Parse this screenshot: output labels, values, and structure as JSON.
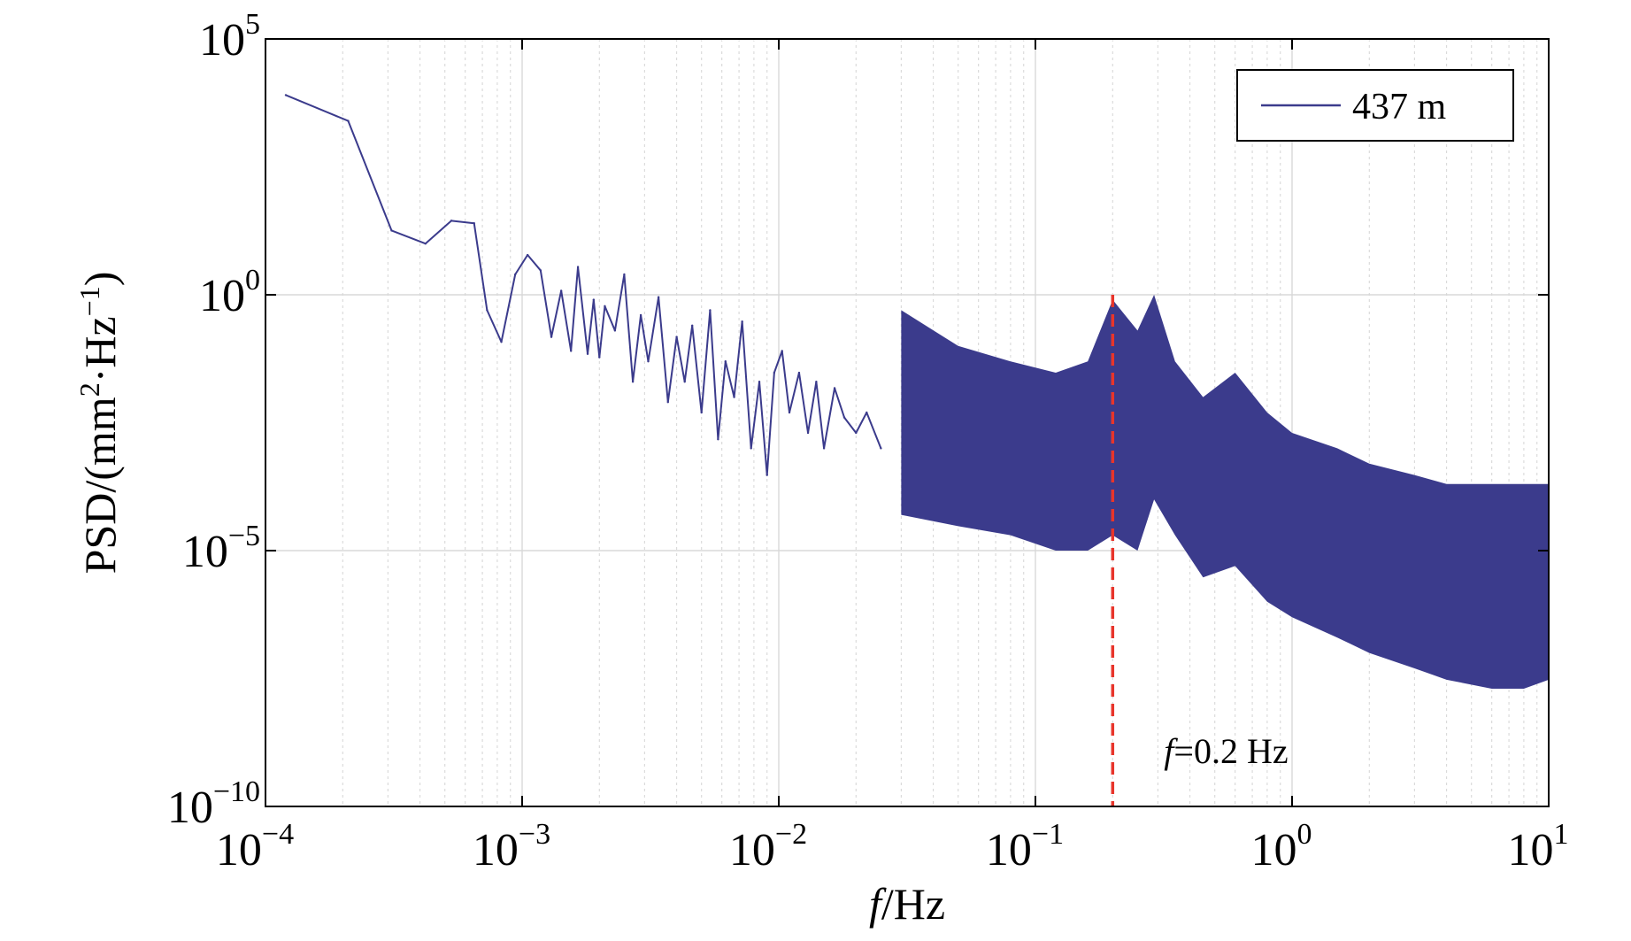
{
  "chart_data": {
    "type": "line",
    "title": "",
    "scale": {
      "x": "log",
      "y": "log"
    },
    "xlabel": {
      "italic": "f",
      "rest": "/Hz"
    },
    "ylabel": {
      "prefix": "PSD/(mm",
      "sup1": "2",
      "mid": "·Hz",
      "sup2": "−1",
      "suffix": ")"
    },
    "xlim": [
      0.0001,
      10
    ],
    "ylim": [
      1e-10,
      100000
    ],
    "x_ticks": [
      {
        "value": 0.0001,
        "base": "10",
        "exp": "−4"
      },
      {
        "value": 0.001,
        "base": "10",
        "exp": "−3"
      },
      {
        "value": 0.01,
        "base": "10",
        "exp": "−2"
      },
      {
        "value": 0.1,
        "base": "10",
        "exp": "−1"
      },
      {
        "value": 1,
        "base": "10",
        "exp": "0"
      },
      {
        "value": 10,
        "base": "10",
        "exp": "1"
      }
    ],
    "y_ticks": [
      {
        "value": 1e-10,
        "base": "10",
        "exp": "−10"
      },
      {
        "value": 1e-05,
        "base": "10",
        "exp": "−5"
      },
      {
        "value": 1,
        "base": "10",
        "exp": "0"
      },
      {
        "value": 100000,
        "base": "10",
        "exp": "5"
      }
    ],
    "grid": true,
    "legend": {
      "location": "top-right",
      "entries": [
        "437 m"
      ]
    },
    "colors": {
      "series": "#3b3b8c",
      "marker_line": "#e8352b",
      "grid": "#d8d8d8"
    },
    "series": [
      {
        "name": "437 m",
        "x": [
          0.00012,
          0.00021,
          0.00031,
          0.00042,
          0.00053,
          0.00065,
          0.00073,
          0.00083,
          0.00094,
          0.00105,
          0.00118,
          0.0013,
          0.00142,
          0.00155,
          0.00165,
          0.0018,
          0.0019,
          0.002,
          0.0021,
          0.0023,
          0.0025,
          0.0027,
          0.0029,
          0.0031,
          0.0034,
          0.0037,
          0.004,
          0.0043,
          0.0046,
          0.005,
          0.0054,
          0.0058,
          0.0062,
          0.0067,
          0.0072,
          0.0078,
          0.0084,
          0.009,
          0.0096,
          0.0103,
          0.011,
          0.012,
          0.013,
          0.014,
          0.015,
          0.0165,
          0.018,
          0.02,
          0.022,
          0.025
        ],
        "values": [
          8000,
          2500,
          18,
          10,
          28,
          25,
          0.5,
          0.12,
          2.5,
          6,
          3,
          0.15,
          1.2,
          0.08,
          3.5,
          0.07,
          0.8,
          0.06,
          0.6,
          0.2,
          2.5,
          0.02,
          0.4,
          0.05,
          0.9,
          0.008,
          0.15,
          0.02,
          0.25,
          0.005,
          0.5,
          0.0015,
          0.05,
          0.01,
          0.3,
          0.001,
          0.02,
          0.0003,
          0.03,
          0.08,
          0.005,
          0.03,
          0.002,
          0.02,
          0.001,
          0.015,
          0.004,
          0.002,
          0.005,
          0.001
        ],
        "band_freq": [
          0.03,
          0.05,
          0.08,
          0.12,
          0.16,
          0.2,
          0.25,
          0.29,
          0.35,
          0.45,
          0.6,
          0.8,
          1,
          1.5,
          2,
          3,
          4,
          6,
          8,
          10
        ],
        "band_upper": [
          0.5,
          0.1,
          0.05,
          0.03,
          0.05,
          0.8,
          0.2,
          1,
          0.05,
          0.01,
          0.03,
          0.005,
          0.002,
          0.001,
          0.0005,
          0.0003,
          0.0002,
          0.0002,
          0.0002,
          0.0002
        ],
        "band_lower": [
          5e-05,
          3e-05,
          2e-05,
          1e-05,
          1e-05,
          2e-05,
          1e-05,
          0.0001,
          2e-05,
          3e-06,
          5e-06,
          1e-06,
          5e-07,
          2e-07,
          1e-07,
          5e-08,
          3e-08,
          2e-08,
          2e-08,
          3e-08
        ]
      }
    ],
    "annotation": {
      "x": 0.2,
      "italic": "f",
      "text": "=0.2 Hz"
    }
  }
}
